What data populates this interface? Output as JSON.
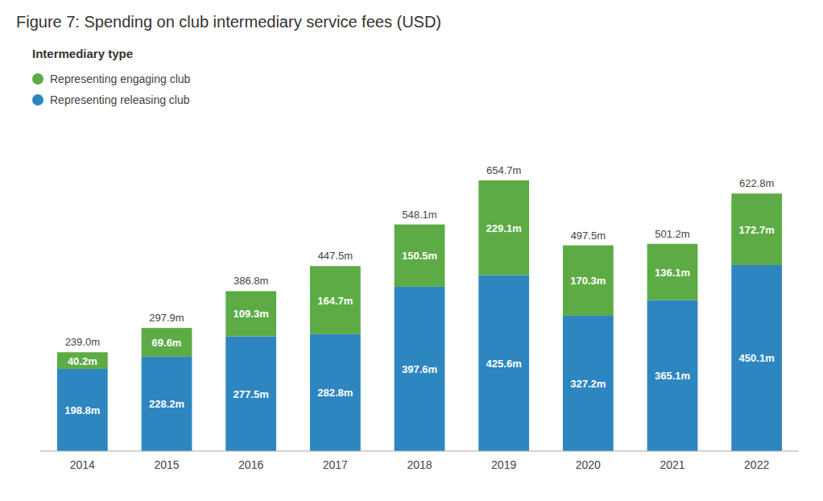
{
  "chart_data": {
    "type": "bar",
    "title": "Figure 7: Spending on club intermediary service fees (USD)",
    "categories": [
      "2014",
      "2015",
      "2016",
      "2017",
      "2018",
      "2019",
      "2020",
      "2021",
      "2022"
    ],
    "series": [
      {
        "name": "Representing releasing club",
        "color": "#2e86c1",
        "values": [
          198.8,
          228.2,
          277.5,
          282.8,
          397.6,
          425.6,
          327.2,
          365.1,
          450.1
        ],
        "value_labels": [
          "198.8m",
          "228.2m",
          "277.5m",
          "282.8m",
          "397.6m",
          "425.6m",
          "327.2m",
          "365.1m",
          "450.1m"
        ]
      },
      {
        "name": "Representing engaging club",
        "color": "#5dab45",
        "values": [
          40.2,
          69.6,
          109.3,
          164.7,
          150.5,
          229.1,
          170.3,
          136.1,
          172.7
        ],
        "value_labels": [
          "40.2m",
          "69.6m",
          "109.3m",
          "164.7m",
          "150.5m",
          "229.1m",
          "170.3m",
          "136.1m",
          "172.7m"
        ]
      }
    ],
    "totals": [
      239.0,
      297.9,
      386.8,
      447.5,
      548.1,
      654.7,
      497.5,
      501.2,
      622.8
    ],
    "total_labels": [
      "239.0m",
      "297.9m",
      "386.8m",
      "447.5m",
      "548.1m",
      "654.7m",
      "497.5m",
      "501.2m",
      "622.8m"
    ],
    "legend_title": "Intermediary type",
    "legend": "upper left",
    "stacked": true,
    "data_labels": true,
    "tick_labels": "x",
    "grid": false,
    "ylim": [
      0,
      750
    ]
  }
}
